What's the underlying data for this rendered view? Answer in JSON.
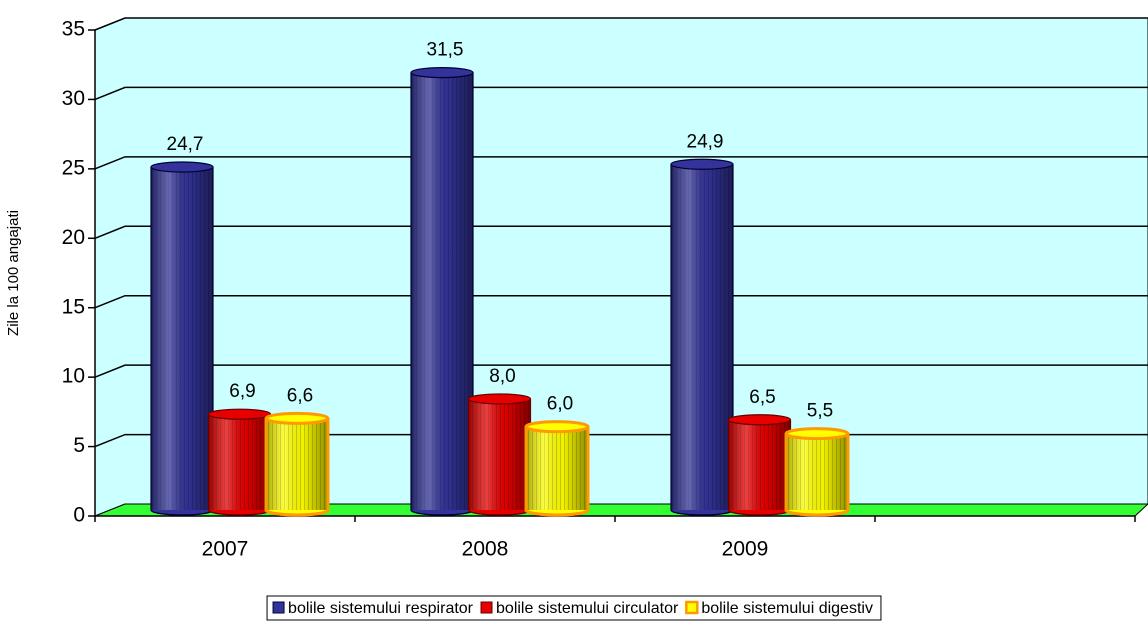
{
  "chart_data": {
    "type": "bar",
    "y_label": "Zile la 100 angajati",
    "categories": [
      "2007",
      "2008",
      "2009",
      null
    ],
    "series": [
      {
        "name": "bolile sistemului respirator",
        "color": "#333399",
        "edgecolor": "#000033",
        "values": [
          24.7,
          31.5,
          24.9,
          null
        ],
        "value_labels": [
          "24,7",
          "31,5",
          "24,9",
          null
        ]
      },
      {
        "name": "bolile sistemului circulator",
        "color": "#e60000",
        "edgecolor": "#660000",
        "values": [
          6.9,
          8.0,
          6.5,
          null
        ],
        "value_labels": [
          "6,9",
          "8,0",
          "6,5",
          null
        ]
      },
      {
        "name": "bolile sistemului digestiv",
        "color": "#ffff00",
        "edgecolor": "#ff9900",
        "values": [
          6.6,
          6.0,
          5.5,
          null
        ],
        "value_labels": [
          "6,6",
          "6,0",
          "5,5",
          null
        ]
      }
    ],
    "ylim": [
      0,
      35
    ],
    "yticks": [
      0,
      5,
      10,
      15,
      20,
      25,
      30,
      35
    ],
    "grid": true,
    "legend": "bottom"
  }
}
